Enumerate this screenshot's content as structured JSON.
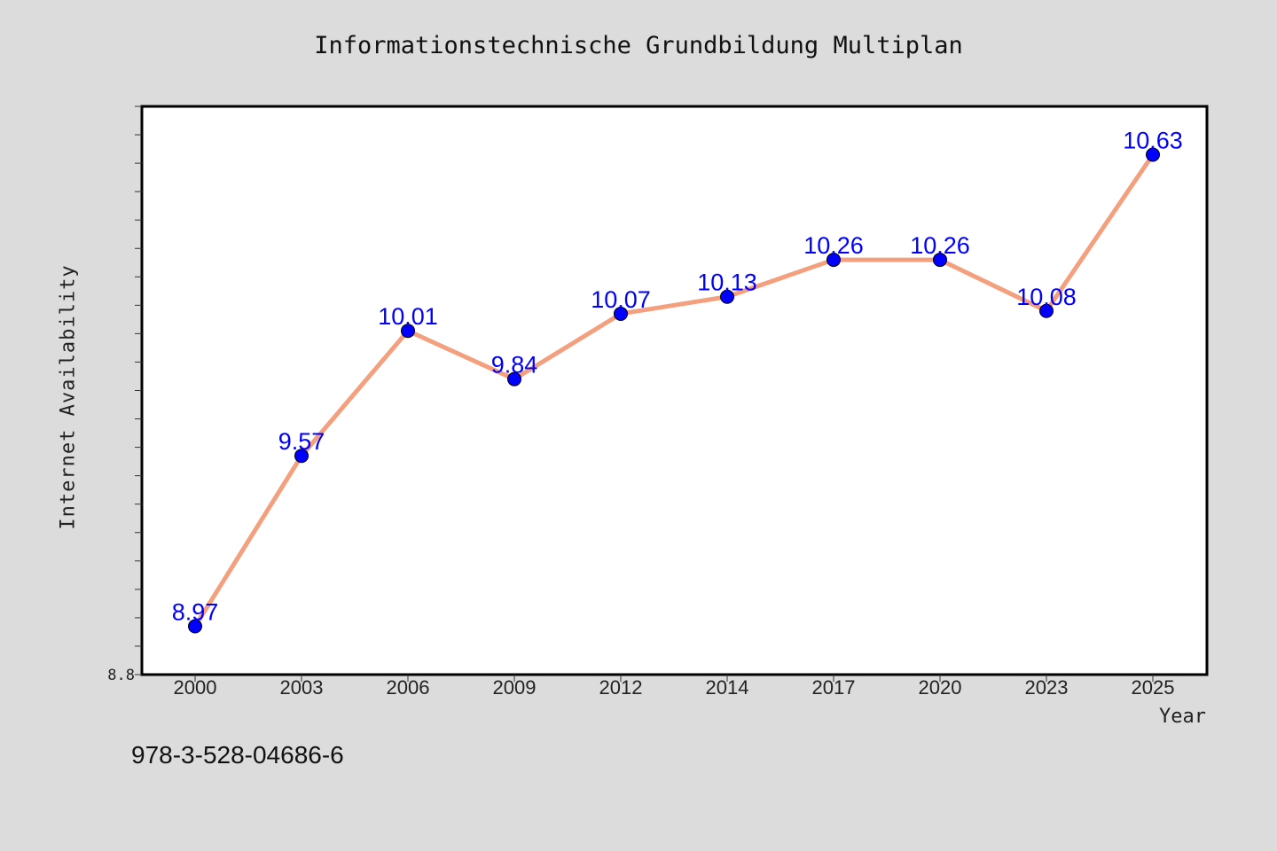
{
  "chart_data": {
    "type": "line",
    "title": "Informationstechnische Grundbildung Multiplan",
    "xlabel": "Year",
    "ylabel": "Internet Availability",
    "categories": [
      "2000",
      "2003",
      "2006",
      "2009",
      "2012",
      "2014",
      "2017",
      "2020",
      "2023",
      "2025"
    ],
    "series": [
      {
        "values": [
          8.97,
          9.57,
          10.01,
          9.84,
          10.07,
          10.13,
          10.26,
          10.26,
          10.08,
          10.63
        ],
        "labels": [
          "8.97",
          "9.57",
          "10.01",
          "9.84",
          "10.07",
          "10.13",
          "10.26",
          "10.26",
          "10.08",
          "10.63"
        ],
        "line_color": "#f4a07e",
        "marker_color": "#0000ff",
        "label_color": "#0000ff"
      }
    ],
    "ylim": [
      8.8,
      10.8
    ],
    "y_tick_labels": [
      "8.8"
    ],
    "grid": false,
    "legend": "none"
  },
  "footnote": "978-3-528-04686-6",
  "colors": {
    "background": "#dcdcdc",
    "plot_background": "#ffffff"
  }
}
